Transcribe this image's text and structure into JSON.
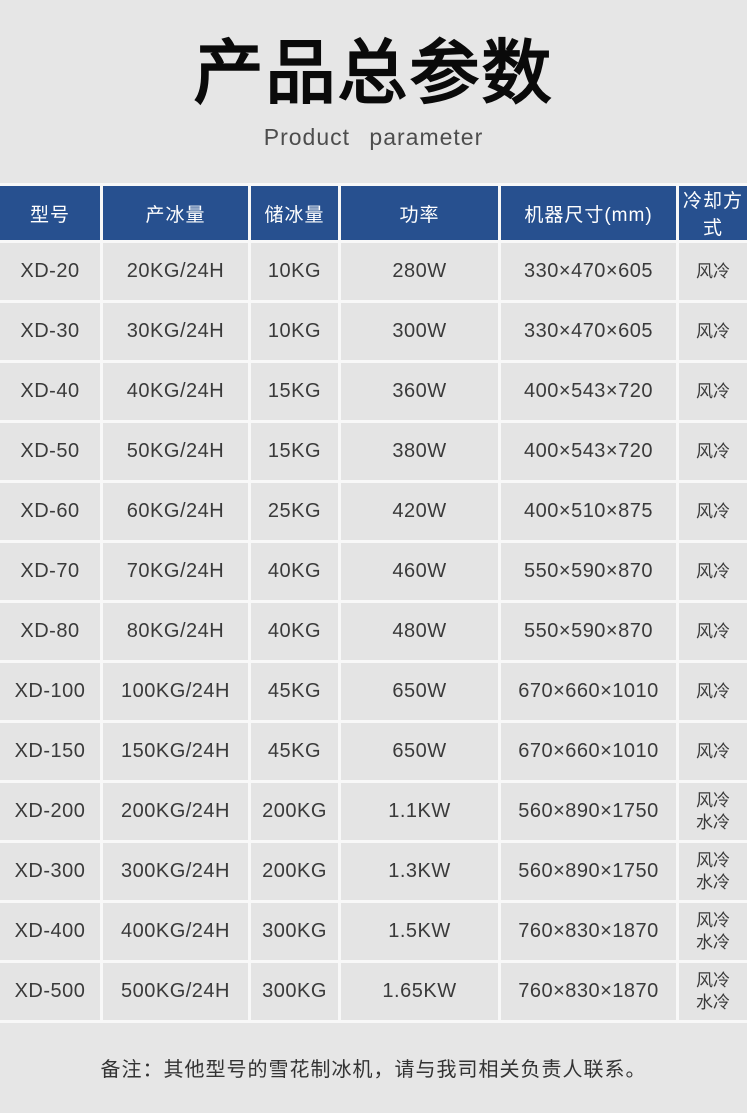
{
  "page": {
    "title": "产品总参数",
    "subtitle": "Product parameter",
    "note": "备注：其他型号的雪花制冰机，请与我司相关负责人联系。"
  },
  "colors": {
    "header_bg": "#27508f",
    "header_text": "#ffffff",
    "cell_bg": "#e4e4e4",
    "gap": "#f8f8f8",
    "page_bg": "#e6e6e6",
    "cell_text": "#3a3a3a"
  },
  "table": {
    "columns": [
      "型号",
      "产冰量",
      "储冰量",
      "功率",
      "机器尺寸(mm)",
      "冷却方式"
    ],
    "rows": [
      [
        "XD-20",
        "20KG/24H",
        "10KG",
        "280W",
        "330×470×605",
        "风冷"
      ],
      [
        "XD-30",
        "30KG/24H",
        "10KG",
        "300W",
        "330×470×605",
        "风冷"
      ],
      [
        "XD-40",
        "40KG/24H",
        "15KG",
        "360W",
        "400×543×720",
        "风冷"
      ],
      [
        "XD-50",
        "50KG/24H",
        "15KG",
        "380W",
        "400×543×720",
        "风冷"
      ],
      [
        "XD-60",
        "60KG/24H",
        "25KG",
        "420W",
        "400×510×875",
        "风冷"
      ],
      [
        "XD-70",
        "70KG/24H",
        "40KG",
        "460W",
        "550×590×870",
        "风冷"
      ],
      [
        "XD-80",
        "80KG/24H",
        "40KG",
        "480W",
        "550×590×870",
        "风冷"
      ],
      [
        "XD-100",
        "100KG/24H",
        "45KG",
        "650W",
        "670×660×1010",
        "风冷"
      ],
      [
        "XD-150",
        "150KG/24H",
        "45KG",
        "650W",
        "670×660×1010",
        "风冷"
      ],
      [
        "XD-200",
        "200KG/24H",
        "200KG",
        "1.1KW",
        "560×890×1750",
        "风冷\n水冷"
      ],
      [
        "XD-300",
        "300KG/24H",
        "200KG",
        "1.3KW",
        "560×890×1750",
        "风冷\n水冷"
      ],
      [
        "XD-400",
        "400KG/24H",
        "300KG",
        "1.5KW",
        "760×830×1870",
        "风冷\n水冷"
      ],
      [
        "XD-500",
        "500KG/24H",
        "300KG",
        "1.65KW",
        "760×830×1870",
        "风冷\n水冷"
      ]
    ]
  }
}
